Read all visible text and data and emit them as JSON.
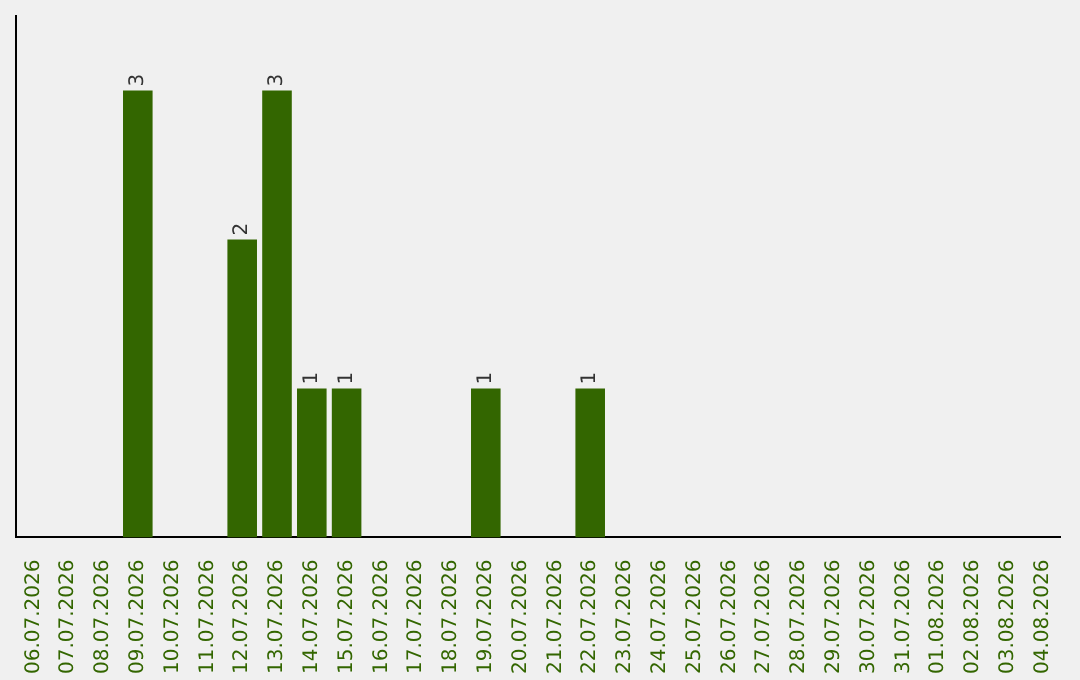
{
  "chart_data": {
    "type": "bar",
    "categories": [
      "06.07.2026",
      "07.07.2026",
      "08.07.2026",
      "09.07.2026",
      "10.07.2026",
      "11.07.2026",
      "12.07.2026",
      "13.07.2026",
      "14.07.2026",
      "15.07.2026",
      "16.07.2026",
      "17.07.2026",
      "18.07.2026",
      "19.07.2026",
      "20.07.2026",
      "21.07.2026",
      "22.07.2026",
      "23.07.2026",
      "24.07.2026",
      "25.07.2026",
      "26.07.2026",
      "27.07.2026",
      "28.07.2026",
      "29.07.2026",
      "30.07.2026",
      "31.07.2026",
      "01.08.2026",
      "02.08.2026",
      "03.08.2026",
      "04.08.2026"
    ],
    "values": [
      0,
      0,
      0,
      3,
      0,
      0,
      2,
      3,
      1,
      1,
      0,
      0,
      0,
      1,
      0,
      0,
      1,
      0,
      0,
      0,
      0,
      0,
      0,
      0,
      0,
      0,
      0,
      0,
      0,
      0
    ],
    "value_labels": [
      null,
      null,
      null,
      "3",
      null,
      null,
      "2",
      "3",
      "1",
      "1",
      null,
      null,
      null,
      "1",
      null,
      null,
      "1",
      null,
      null,
      null,
      null,
      null,
      null,
      null,
      null,
      null,
      null,
      null,
      null,
      null
    ],
    "color": "#336600",
    "tick_labels": "x",
    "grid": false,
    "legend": false
  }
}
